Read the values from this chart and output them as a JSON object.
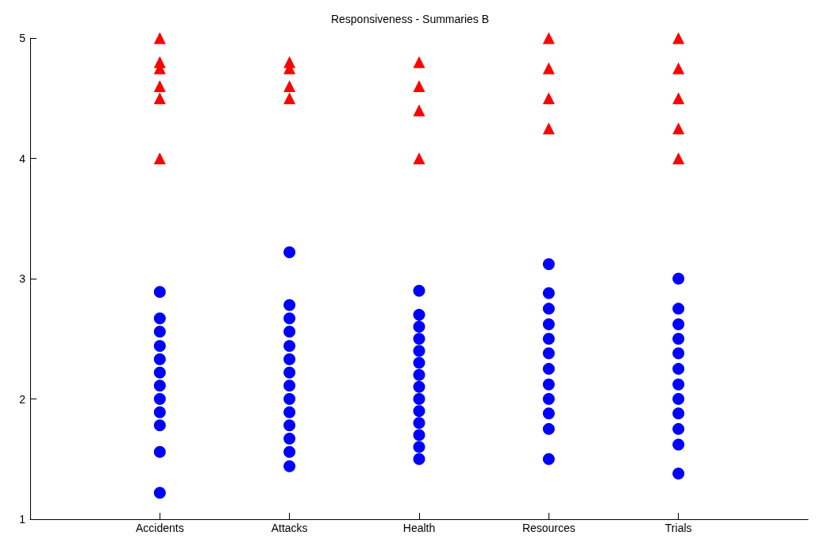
{
  "chart_data": {
    "type": "scatter",
    "title": "Responsiveness - Summaries B",
    "categories": [
      "Accidents",
      "Attacks",
      "Health",
      "Resources",
      "Trials"
    ],
    "ylim": [
      1,
      5
    ],
    "yticks": [
      1,
      2,
      3,
      4,
      5
    ],
    "grid": false,
    "series": [
      {
        "color": "#0000ff",
        "marker": "circle",
        "x": [
          "Accidents",
          "Accidents",
          "Accidents",
          "Accidents",
          "Accidents",
          "Accidents",
          "Accidents",
          "Accidents",
          "Accidents",
          "Accidents",
          "Accidents",
          "Accidents",
          "Attacks",
          "Attacks",
          "Attacks",
          "Attacks",
          "Attacks",
          "Attacks",
          "Attacks",
          "Attacks",
          "Attacks",
          "Attacks",
          "Attacks",
          "Attacks",
          "Attacks",
          "Attacks",
          "Health",
          "Health",
          "Health",
          "Health",
          "Health",
          "Health",
          "Health",
          "Health",
          "Health",
          "Health",
          "Health",
          "Health",
          "Health",
          "Health",
          "Resources",
          "Resources",
          "Resources",
          "Resources",
          "Resources",
          "Resources",
          "Resources",
          "Resources",
          "Resources",
          "Resources",
          "Resources",
          "Resources",
          "Trials",
          "Trials",
          "Trials",
          "Trials",
          "Trials",
          "Trials",
          "Trials",
          "Trials",
          "Trials",
          "Trials",
          "Trials",
          "Trials"
        ],
        "values": [
          2.89,
          2.67,
          2.56,
          2.44,
          2.33,
          2.22,
          2.11,
          2.0,
          1.89,
          1.78,
          1.56,
          1.22,
          3.22,
          2.78,
          2.67,
          2.56,
          2.44,
          2.33,
          2.22,
          2.11,
          2.0,
          1.89,
          1.78,
          1.67,
          1.56,
          1.44,
          2.9,
          2.7,
          2.6,
          2.5,
          2.4,
          2.3,
          2.2,
          2.1,
          2.0,
          1.9,
          1.8,
          1.7,
          1.6,
          1.5,
          3.12,
          2.88,
          2.75,
          2.62,
          2.5,
          2.38,
          2.25,
          2.12,
          2.0,
          1.88,
          1.75,
          1.5,
          3.0,
          2.75,
          2.62,
          2.5,
          2.38,
          2.25,
          2.12,
          2.0,
          1.88,
          1.75,
          1.62,
          1.38
        ]
      },
      {
        "color": "#ff0000",
        "marker": "triangle",
        "x": [
          "Accidents",
          "Accidents",
          "Accidents",
          "Accidents",
          "Accidents",
          "Accidents",
          "Attacks",
          "Attacks",
          "Attacks",
          "Attacks",
          "Health",
          "Health",
          "Health",
          "Health",
          "Resources",
          "Resources",
          "Resources",
          "Resources",
          "Trials",
          "Trials",
          "Trials",
          "Trials",
          "Trials"
        ],
        "values": [
          5.0,
          4.8,
          4.75,
          4.6,
          4.5,
          4.0,
          4.8,
          4.75,
          4.6,
          4.5,
          4.8,
          4.6,
          4.4,
          4.0,
          5.0,
          4.75,
          4.5,
          4.25,
          5.0,
          4.75,
          4.5,
          4.25,
          4.0
        ]
      }
    ]
  }
}
